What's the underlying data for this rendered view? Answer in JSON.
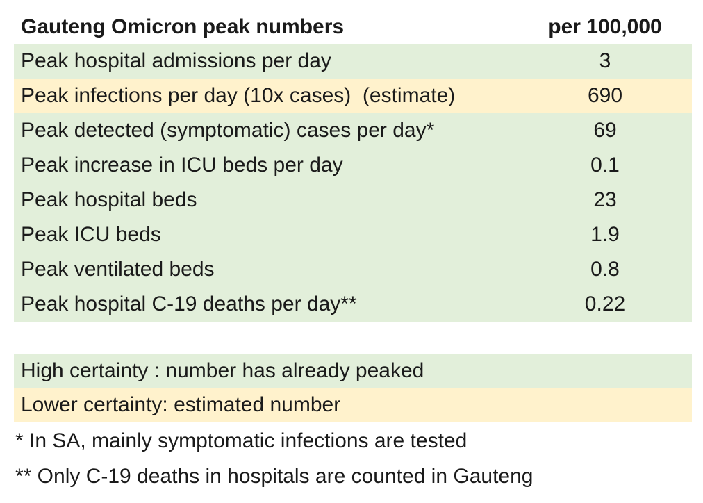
{
  "table": {
    "title": "Gauteng Omicron peak numbers",
    "unit_header": "per 100,000",
    "rows": [
      {
        "label": "Peak hospital admissions per day",
        "value": "3",
        "certainty": "high"
      },
      {
        "label": "Peak infections per day (10x cases)  (estimate)",
        "value": "690",
        "certainty": "lower"
      },
      {
        "label": "Peak detected (symptomatic) cases per day*",
        "value": "69",
        "certainty": "high"
      },
      {
        "label": "Peak increase in ICU beds per day",
        "value": "0.1",
        "certainty": "high"
      },
      {
        "label": "Peak hospital beds",
        "value": "23",
        "certainty": "high"
      },
      {
        "label": "Peak ICU beds",
        "value": "1.9",
        "certainty": "high"
      },
      {
        "label": "Peak ventilated beds",
        "value": "0.8",
        "certainty": "high"
      },
      {
        "label": "Peak hospital C-19 deaths per day**",
        "value": "0.22",
        "certainty": "high"
      }
    ]
  },
  "legend": [
    {
      "label": "High certainty : number has already peaked",
      "type": "high"
    },
    {
      "label": "Lower certainty: estimated number",
      "type": "lower"
    }
  ],
  "footnotes": [
    "* In SA, mainly symptomatic infections are tested",
    "** Only C-19 deaths in hospitals are counted in Gauteng"
  ],
  "colors": {
    "high_certainty_bg": "#e2efda",
    "lower_certainty_bg": "#fff2cc",
    "text": "#1a1a1a",
    "page_bg": "#ffffff"
  },
  "chart_data": {
    "type": "table",
    "title": "Gauteng Omicron peak numbers",
    "unit": "per 100,000",
    "columns": [
      "Metric",
      "per 100,000"
    ],
    "rows": [
      [
        "Peak hospital admissions per day",
        3
      ],
      [
        "Peak infections per day (10x cases)  (estimate)",
        690
      ],
      [
        "Peak detected (symptomatic) cases per day*",
        69
      ],
      [
        "Peak increase in ICU beds per day",
        0.1
      ],
      [
        "Peak hospital beds",
        23
      ],
      [
        "Peak ICU beds",
        1.9
      ],
      [
        "Peak ventilated beds",
        0.8
      ],
      [
        "Peak hospital C-19 deaths per day**",
        0.22
      ],
      [
        "High certainty : number has already peaked",
        null
      ],
      [
        "Lower certainty: estimated number",
        null
      ]
    ],
    "row_certainty": [
      "high",
      "lower",
      "high",
      "high",
      "high",
      "high",
      "high",
      "high"
    ],
    "legend": {
      "high": "High certainty : number has already peaked",
      "lower": "Lower certainty: estimated number"
    },
    "annotations": [
      "* In SA, mainly symptomatic infections are tested",
      "** Only C-19 deaths in hospitals are counted in Gauteng"
    ]
  }
}
